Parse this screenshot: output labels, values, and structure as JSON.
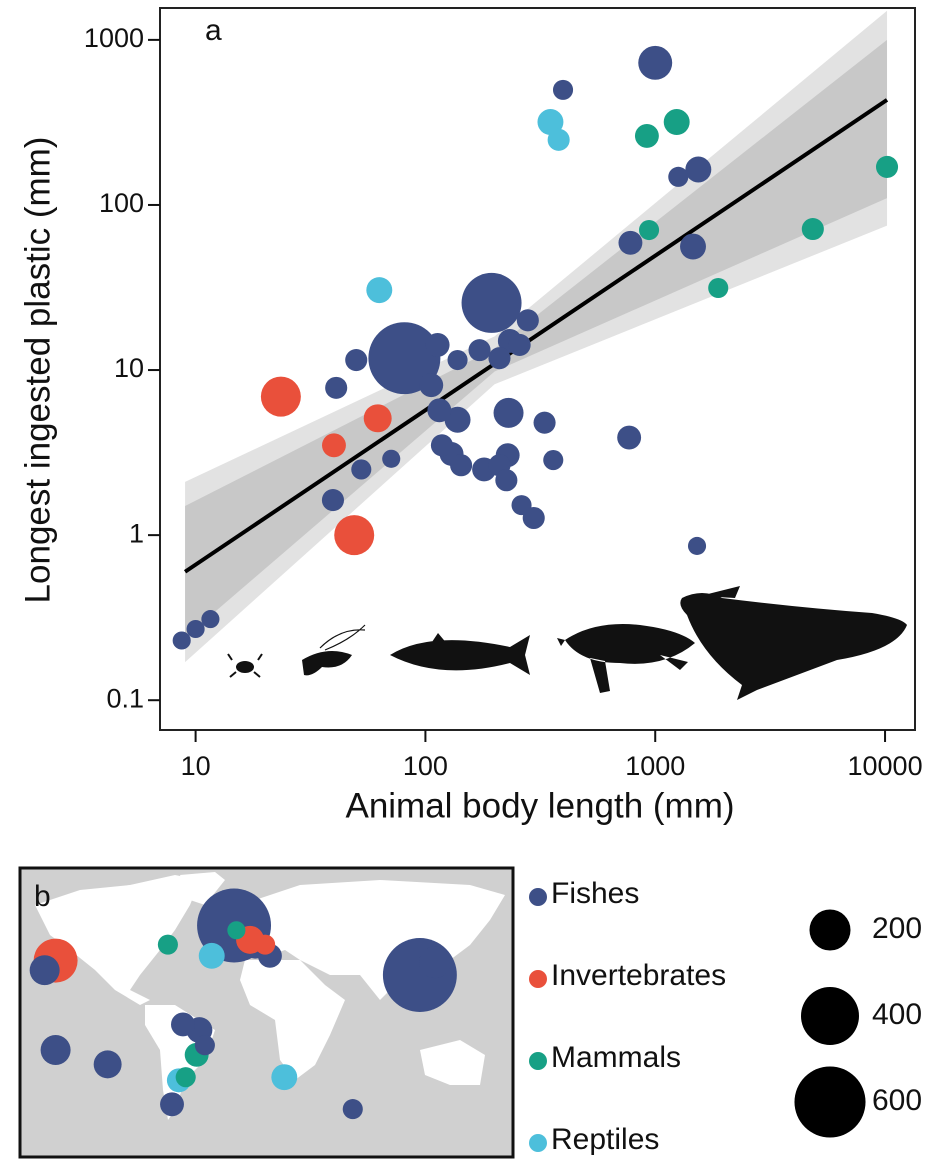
{
  "chart_data": [
    {
      "type": "scatter",
      "panel_label": "a",
      "x_label": "Animal body length (mm)",
      "y_label": "Longest ingested plastic (mm)",
      "log_x": true,
      "log_y": true,
      "xlim": [
        7,
        13500
      ],
      "ylim": [
        0.066,
        1560
      ],
      "xticks": [
        10,
        100,
        1000,
        10000
      ],
      "yticks": [
        0.1,
        1,
        10,
        100,
        1000
      ],
      "fit": {
        "color": "#000000",
        "x": [
          9,
          10200
        ],
        "y": [
          0.6,
          433
        ]
      },
      "bands": [
        {
          "color": "#e2e2e2",
          "x": [
            9,
            200,
            10200
          ],
          "upper": [
            2.1,
            16,
            1500
          ],
          "lower": [
            0.17,
            8.2,
            75
          ]
        },
        {
          "color": "#c8c8c8",
          "x": [
            9,
            200,
            10200
          ],
          "upper": [
            1.5,
            13.5,
            1000
          ],
          "lower": [
            0.24,
            9.8,
            110
          ]
        }
      ],
      "series": [
        {
          "name": "Fishes",
          "color": "#3d4f87",
          "x": [
            8.7,
            10,
            11.6,
            39.6,
            40.9,
            52.6,
            71,
            50,
            81,
            113,
            138,
            106,
            115,
            138,
            118,
            130,
            143,
            180,
            210,
            225,
            194,
            172,
            210,
            233,
            279,
            257,
            230,
            228,
            262,
            296,
            330,
            360,
            397,
            1000,
            780,
            770,
            1260,
            1540,
            1460,
            1520
          ],
          "values": [
            0.23,
            0.27,
            0.31,
            1.63,
            7.8,
            2.5,
            2.9,
            11.5,
            11.8,
            14.2,
            11.5,
            8.1,
            5.7,
            5,
            3.5,
            3.1,
            2.65,
            2.5,
            2.65,
            2.15,
            25.5,
            13.2,
            11.8,
            15,
            20,
            14.2,
            5.5,
            3.05,
            1.52,
            1.27,
            4.8,
            2.85,
            498,
            726,
            59,
            3.9,
            148,
            164,
            56,
            0.86
          ],
          "sizes": [
            39,
            39,
            39,
            58,
            58,
            48,
            39,
            58,
            616,
            68,
            48,
            68,
            68,
            80,
            58,
            68,
            58,
            68,
            58,
            58,
            428,
            58,
            58,
            68,
            58,
            58,
            107,
            68,
            48,
            58,
            58,
            48,
            48,
            137,
            68,
            68,
            48,
            80,
            80,
            39
          ]
        },
        {
          "name": "Invertebrates",
          "color": "#e9503b",
          "x": [
            23.5,
            40,
            62,
            49
          ],
          "values": [
            6.9,
            3.5,
            5.1,
            1.0
          ],
          "sizes": [
            190,
            68,
            93,
            190
          ]
        },
        {
          "name": "Mammals",
          "color": "#17a085",
          "x": [
            920,
            1240,
            940,
            1880,
            4850,
            10200
          ],
          "values": [
            262,
            318,
            70.5,
            31.4,
            71.5,
            170
          ],
          "sizes": [
            68,
            80,
            48,
            48,
            58,
            58
          ]
        },
        {
          "name": "Reptiles",
          "color": "#4dbfdb",
          "x": [
            63,
            350,
            380
          ],
          "values": [
            30.5,
            318,
            248
          ],
          "sizes": [
            80,
            80,
            58
          ]
        }
      ]
    },
    {
      "type": "map",
      "panel_label": "b",
      "lonlim": [
        -180,
        180
      ],
      "latlim": [
        -92,
        89
      ],
      "size_legend": [
        200,
        400,
        600
      ],
      "series": [
        {
          "color": "#3d4f87",
          "lon": [
            -23.7,
            112,
            123,
            -162,
            -154,
            -116,
            -61,
            -49,
            -45,
            -69,
            63,
            -8,
            2.5
          ],
          "lat": [
            53,
            22,
            30,
            25,
            -25,
            -34,
            -9,
            -12.5,
            -22,
            -59,
            -62,
            41,
            34
          ],
          "sizes": [
            650,
            650,
            120,
            107,
            107,
            93,
            68,
            80,
            48,
            68,
            48,
            93,
            68
          ]
        },
        {
          "color": "#e9503b",
          "lon": [
            -154,
            -12,
            -1
          ],
          "lat": [
            31,
            44,
            41
          ],
          "sizes": [
            230,
            93,
            48
          ]
        },
        {
          "color": "#17a085",
          "lon": [
            -72,
            -22,
            -51,
            -59
          ],
          "lat": [
            41,
            50,
            -28,
            -42
          ],
          "sizes": [
            48,
            39,
            68,
            48
          ]
        },
        {
          "color": "#4dbfdb",
          "lon": [
            -40,
            -64,
            13
          ],
          "lat": [
            34,
            -44,
            -42
          ],
          "sizes": [
            80,
            68,
            80
          ]
        }
      ]
    }
  ]
}
